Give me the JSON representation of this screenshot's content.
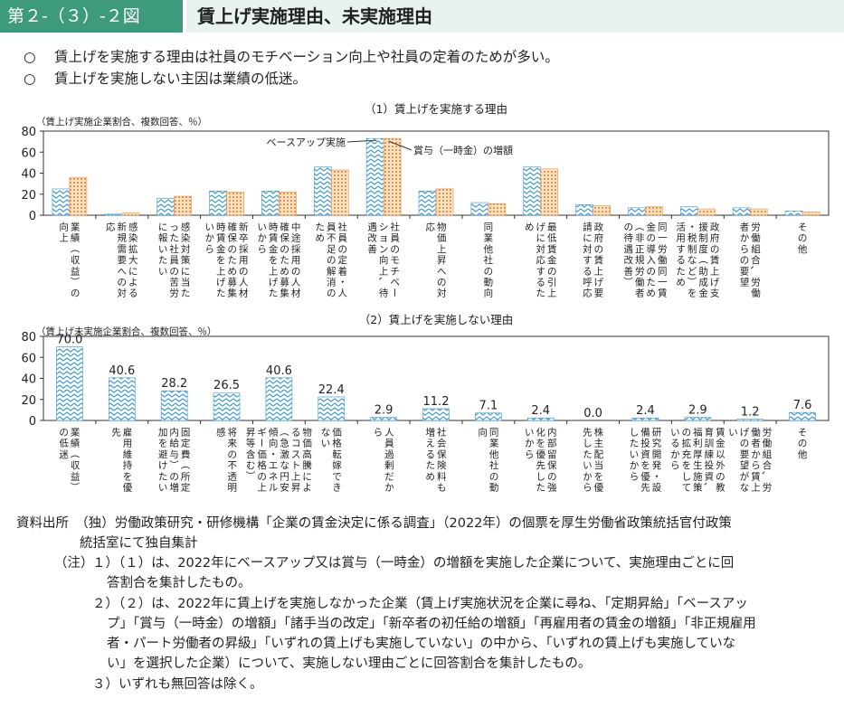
{
  "header": {
    "figure_label": "第２-（３）-２図",
    "title": "賃上げ実施理由、未実施理由"
  },
  "summary": {
    "bullet": "○",
    "lines": [
      "賃上げを実施する理由は社員のモチベーション向上や社員の定着のためが多い。",
      "賃上げを実施しない主因は業績の低迷。"
    ]
  },
  "chart_data": [
    {
      "type": "bar",
      "title": "（1）賃上げを実施する理由",
      "ylabel": "（賃上げ実施企業割合、複数回答、％）",
      "ylim": [
        0,
        80
      ],
      "yticks": [
        0,
        20,
        40,
        60,
        80
      ],
      "categories": [
        "業績（収益）の向上",
        "感染拡大による新規需要への対応",
        "感染対策に当たった社員の苦労に報いたい",
        "新卒採用の人材確保のため募集時賃金を上げたいから",
        "中途採用の人材確保のため募集時賃金を上げたいから",
        "社員の定着・人員不足の解消のため",
        "社員のモチベーション向上、待遇改善",
        "物価上昇への対応",
        "同業他社の動向",
        "最低賃金の引上げに対応するため",
        "政府の賃上げ要請に対する呼応",
        "同一労働同一賃金の導入のため（非正規労働者の待遇改善）",
        "政府の賃上げ支援制度（助成金・税制など）を活用するため",
        "労働組合、労働者からの要望",
        "その他"
      ],
      "series": [
        {
          "name": "ベースアップ実施",
          "color": "#4aa3d8",
          "values": [
            25,
            1,
            16,
            23,
            23,
            46,
            73,
            23,
            12,
            46,
            10,
            7,
            8,
            7,
            4
          ]
        },
        {
          "name": "賞与（一時金）の増額",
          "color": "#f08c3a",
          "values": [
            36,
            2,
            18,
            22,
            22,
            43,
            73,
            25,
            11,
            44,
            9,
            8,
            6,
            6,
            3
          ]
        }
      ],
      "annotations": [
        "ベースアップ実施",
        "賞与（一時金）の増額"
      ]
    },
    {
      "type": "bar",
      "title": "（2）賃上げを実施しない理由",
      "ylabel": "（賃上げ未実施企業割合、複数回答、％）",
      "ylim": [
        0,
        80
      ],
      "yticks": [
        0,
        20,
        40,
        60,
        80
      ],
      "categories": [
        "業績（収益）の低迷",
        "雇用維持を優先",
        "固定費（所定内給与）の増加を避けたい",
        "将来の不透明感",
        "物価高騰によるコスト上昇（急激な円安傾向・エネルギー価格の上昇等含む）",
        "価格転嫁できない",
        "人員過剰だから",
        "社会保険料も増えるため",
        "同業他社の動向",
        "内部留保の強化を優先したいから",
        "株主配当を優先したいから",
        "研究開発・設備投資を優先したいから",
        "賃金以外の教育訓練投資、福利厚生施策の拡充をしているから",
        "労働組合、労働者から賃上げの要望がない",
        "その他"
      ],
      "series": [
        {
          "name": "賃上げ未実施",
          "color": "#4aa3d8",
          "values": [
            70.0,
            40.6,
            28.2,
            26.5,
            40.6,
            22.4,
            2.9,
            11.2,
            7.1,
            2.4,
            0.0,
            2.4,
            2.9,
            1.2,
            7.6
          ]
        }
      ],
      "value_labels": [
        "70.0",
        "40.6",
        "28.2",
        "26.5",
        "40.6",
        "22.4",
        "2.9",
        "11.2",
        "7.1",
        "2.4",
        "0.0",
        "2.4",
        "2.9",
        "1.2",
        "7.6"
      ]
    }
  ],
  "source": {
    "lines": [
      "資料出所　（独）労働政策研究・研修機構「企業の賃金決定に係る調査」（2022年）の個票を厚生労働省政策統括官付政策",
      "統括室にて独自集計"
    ]
  },
  "notes": {
    "label": "（注）",
    "lines": [
      "１）（１）は、2022年にベースアップ又は賞与（一時金）の増額を実施した企業について、実施理由ごとに回",
      "答割合を集計したもの。",
      "２）（２）は、2022年に賃上げを実施しなかった企業（賃上げ実施状況を企業に尋ね、「定期昇給」「ベースアッ",
      "プ」「賞与（一時金）の増額」「諸手当の改定」「新卒者の初任給の増額」「再雇用者の賃金の増額」「非正規雇用",
      "者・パート労働者の昇級」「いずれの賃上げも実施していない」の中から、「いずれの賃上げも実施していな",
      "い」を選択した企業）について、実施しない理由ごとに回答割合を集計したもの。",
      "３）いずれも無回答は除く。"
    ]
  }
}
